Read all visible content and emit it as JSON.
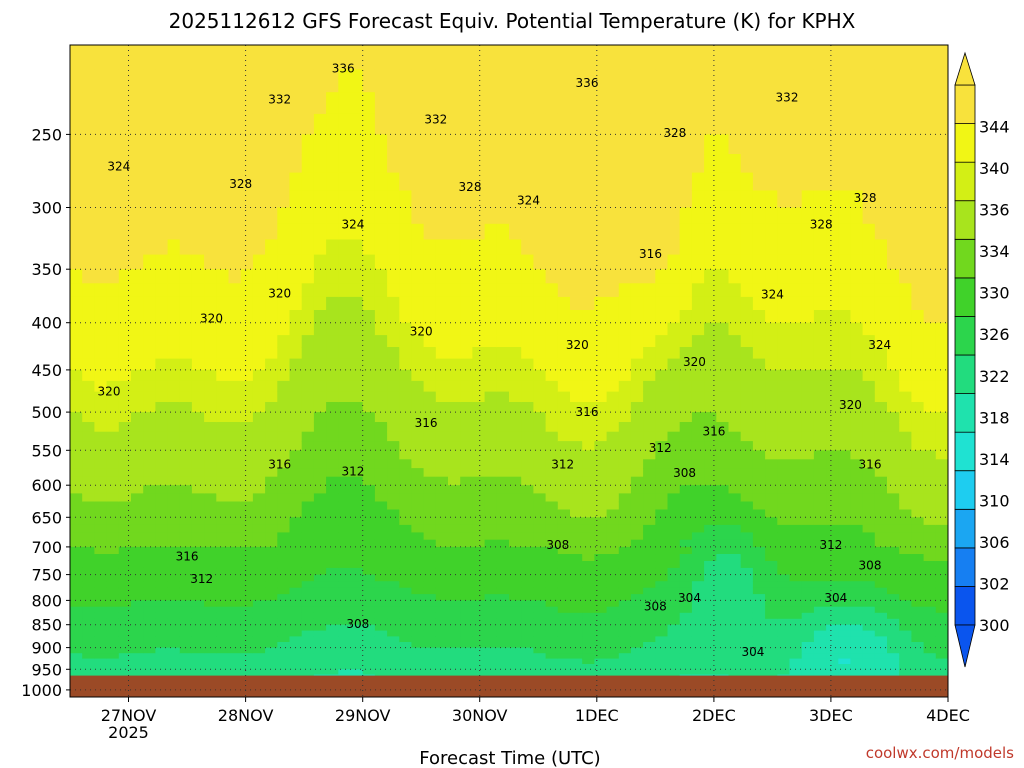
{
  "chart_data": {
    "type": "heatmap",
    "title": "2025112612 GFS Forecast Equiv. Potential Temperature (K) for KPHX",
    "xlabel": "Forecast Time (UTC)",
    "ylabel": "",
    "x_ticks": [
      {
        "label": "27NOV",
        "sublabel": "2025",
        "hours": 12
      },
      {
        "label": "28NOV",
        "hours": 36
      },
      {
        "label": "29NOV",
        "hours": 60
      },
      {
        "label": "30NOV",
        "hours": 84
      },
      {
        "label": "1DEC",
        "hours": 108
      },
      {
        "label": "2DEC",
        "hours": 132
      },
      {
        "label": "3DEC",
        "hours": 156
      },
      {
        "label": "4DEC",
        "hours": 180
      }
    ],
    "x_range_hours": [
      0,
      180
    ],
    "y_ticks": [
      250,
      300,
      350,
      400,
      450,
      500,
      550,
      600,
      650,
      700,
      750,
      800,
      850,
      900,
      950,
      1000
    ],
    "y_range_hPa": [
      200,
      1000
    ],
    "surface_pressure_hPa": 965,
    "colorbar": {
      "levels": [
        300,
        302,
        304,
        306,
        310,
        314,
        318,
        322,
        326,
        330,
        334,
        336,
        340,
        344
      ],
      "labels": [
        "300",
        "302",
        "306",
        "310",
        "314",
        "318",
        "322",
        "326",
        "330",
        "334",
        "336",
        "340",
        "344"
      ],
      "colors": [
        "#0a55ee",
        "#167ff2",
        "#1ba6f2",
        "#1ecdf0",
        "#1fe2d2",
        "#1fe2ad",
        "#22dc7e",
        "#2cd54c",
        "#40d22a",
        "#71d81e",
        "#a8e41d",
        "#d3ef15",
        "#f1f615",
        "#f8e23c"
      ],
      "extend": "both"
    },
    "contour_labels": [
      {
        "text": "336",
        "hours": 56,
        "p": 212
      },
      {
        "text": "332",
        "hours": 43,
        "p": 229
      },
      {
        "text": "332",
        "hours": 75,
        "p": 241
      },
      {
        "text": "336",
        "hours": 106,
        "p": 220
      },
      {
        "text": "332",
        "hours": 147,
        "p": 228
      },
      {
        "text": "328",
        "hours": 124,
        "p": 249
      },
      {
        "text": "324",
        "hours": 10,
        "p": 271
      },
      {
        "text": "328",
        "hours": 35,
        "p": 283
      },
      {
        "text": "328",
        "hours": 82,
        "p": 285
      },
      {
        "text": "324",
        "hours": 94,
        "p": 295
      },
      {
        "text": "324",
        "hours": 58,
        "p": 313
      },
      {
        "text": "328",
        "hours": 163,
        "p": 293
      },
      {
        "text": "328",
        "hours": 154,
        "p": 313
      },
      {
        "text": "316",
        "hours": 119,
        "p": 337
      },
      {
        "text": "320",
        "hours": 43,
        "p": 372
      },
      {
        "text": "324",
        "hours": 144,
        "p": 373
      },
      {
        "text": "320",
        "hours": 29,
        "p": 396
      },
      {
        "text": "320",
        "hours": 72,
        "p": 409
      },
      {
        "text": "320",
        "hours": 104,
        "p": 423
      },
      {
        "text": "324",
        "hours": 166,
        "p": 423
      },
      {
        "text": "320",
        "hours": 128,
        "p": 441
      },
      {
        "text": "320",
        "hours": 8,
        "p": 475
      },
      {
        "text": "320",
        "hours": 160,
        "p": 491
      },
      {
        "text": "316",
        "hours": 106,
        "p": 500
      },
      {
        "text": "316",
        "hours": 73,
        "p": 514
      },
      {
        "text": "316",
        "hours": 132,
        "p": 525
      },
      {
        "text": "312",
        "hours": 121,
        "p": 547
      },
      {
        "text": "316",
        "hours": 43,
        "p": 570
      },
      {
        "text": "312",
        "hours": 101,
        "p": 570
      },
      {
        "text": "316",
        "hours": 164,
        "p": 570
      },
      {
        "text": "312",
        "hours": 58,
        "p": 580
      },
      {
        "text": "308",
        "hours": 126,
        "p": 582
      },
      {
        "text": "308",
        "hours": 100,
        "p": 697
      },
      {
        "text": "312",
        "hours": 156,
        "p": 697
      },
      {
        "text": "316",
        "hours": 24,
        "p": 717
      },
      {
        "text": "308",
        "hours": 164,
        "p": 733
      },
      {
        "text": "312",
        "hours": 27,
        "p": 758
      },
      {
        "text": "304",
        "hours": 127,
        "p": 795
      },
      {
        "text": "304",
        "hours": 157,
        "p": 795
      },
      {
        "text": "308",
        "hours": 120,
        "p": 812
      },
      {
        "text": "308",
        "hours": 59,
        "p": 848
      },
      {
        "text": "304",
        "hours": 140,
        "p": 910
      }
    ]
  },
  "credit": "coolwx.com/models"
}
